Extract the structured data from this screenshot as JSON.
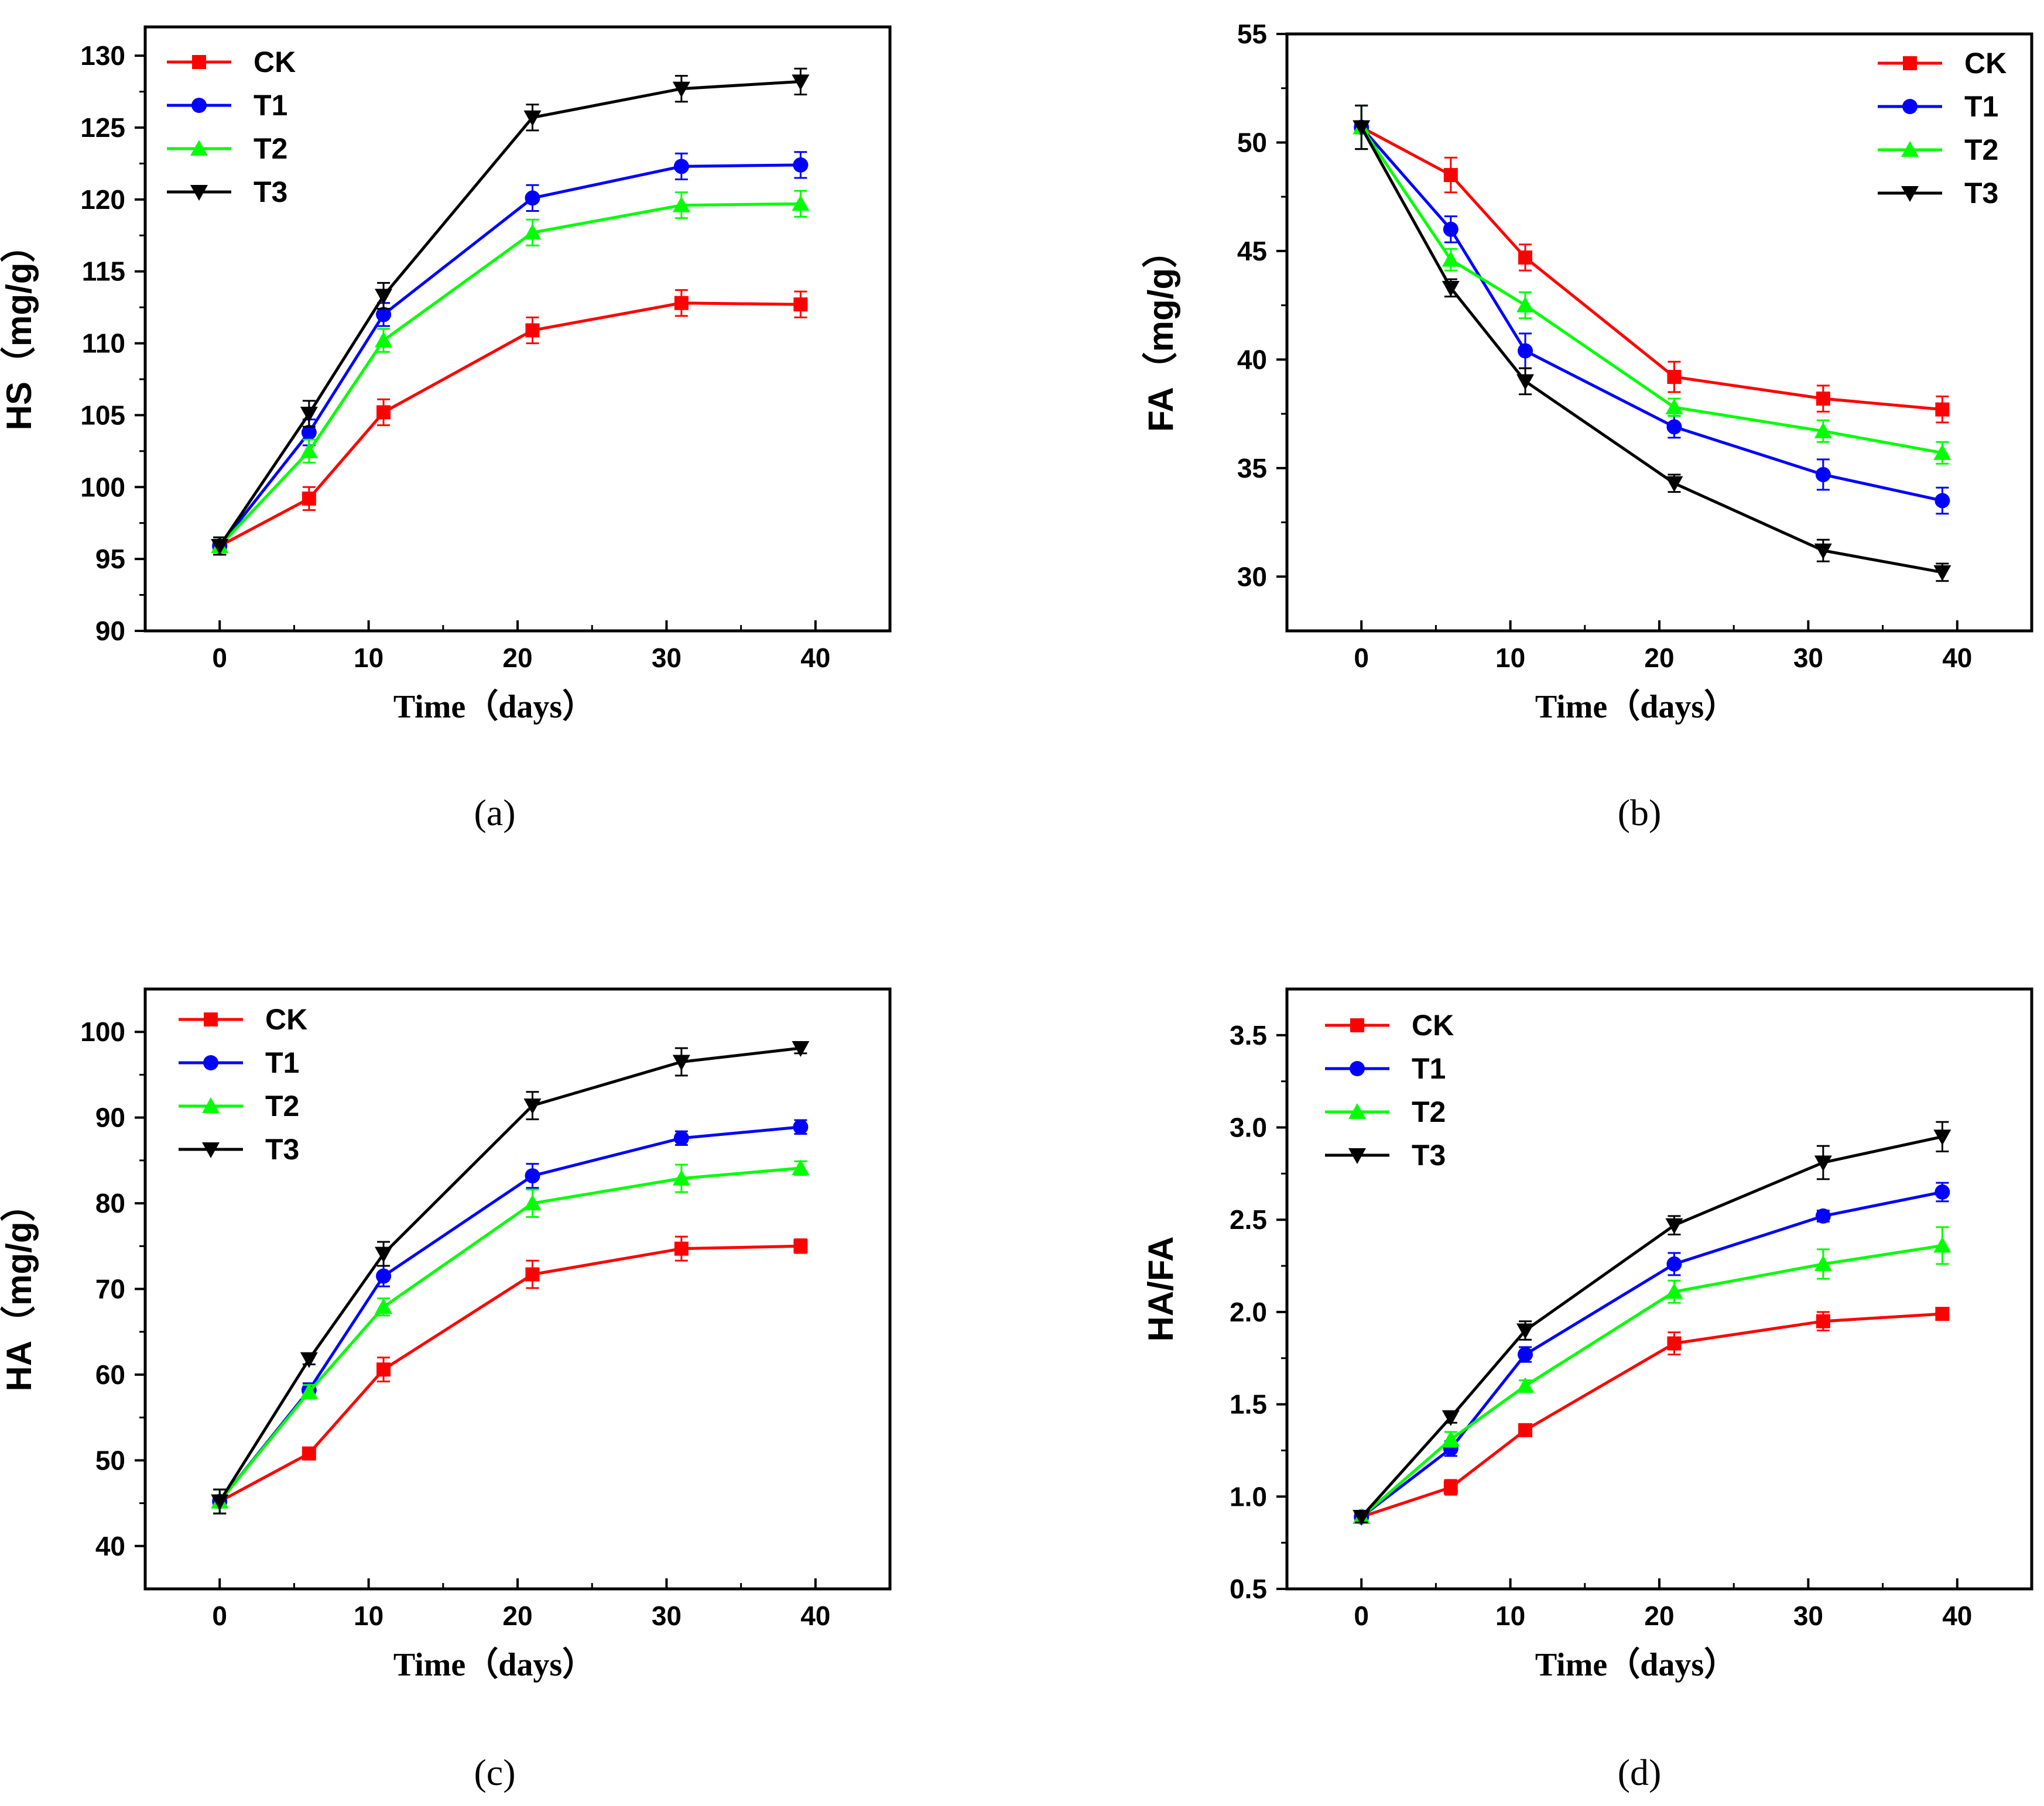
{
  "colors": {
    "CK": "#ff0000",
    "T1": "#0000ff",
    "T2": "#00ff00",
    "T3": "#000000"
  },
  "chart_data": [
    {
      "type": "line",
      "panel_label": "(a)",
      "xlabel": "Time（days）",
      "ylabel": "HS（mg/g）",
      "xlim": [
        -5,
        45
      ],
      "ylim": [
        90,
        132
      ],
      "xticks": [
        0,
        10,
        20,
        30,
        40
      ],
      "yticks": [
        90,
        95,
        100,
        105,
        110,
        115,
        120,
        125,
        130
      ],
      "legend_position": "top-left",
      "x": [
        0,
        6,
        11,
        21,
        31,
        39
      ],
      "series": [
        {
          "name": "CK",
          "marker": "square",
          "values": [
            95.9,
            99.2,
            105.2,
            110.9,
            112.8,
            112.7
          ],
          "errors": [
            0.6,
            0.8,
            0.9,
            0.9,
            0.9,
            0.9
          ]
        },
        {
          "name": "T1",
          "marker": "circle",
          "values": [
            95.9,
            103.8,
            112.0,
            120.1,
            122.3,
            122.4
          ],
          "errors": [
            0.6,
            0.9,
            0.8,
            0.9,
            0.9,
            0.9
          ]
        },
        {
          "name": "T2",
          "marker": "triangle-up",
          "values": [
            95.9,
            102.5,
            110.2,
            117.7,
            119.6,
            119.7
          ],
          "errors": [
            0.6,
            0.8,
            0.8,
            0.9,
            0.9,
            0.9
          ]
        },
        {
          "name": "T3",
          "marker": "triangle-down",
          "values": [
            95.9,
            105.1,
            113.3,
            125.7,
            127.7,
            128.2
          ],
          "errors": [
            0.6,
            0.9,
            0.9,
            0.9,
            0.9,
            0.9
          ]
        }
      ]
    },
    {
      "type": "line",
      "panel_label": "(b)",
      "xlabel": "Time（days）",
      "ylabel": "FA（mg/g）",
      "xlim": [
        -5,
        45
      ],
      "ylim": [
        27.5,
        55
      ],
      "xticks": [
        0,
        10,
        20,
        30,
        40
      ],
      "yticks": [
        30,
        35,
        40,
        45,
        50,
        55
      ],
      "legend_position": "top-right",
      "x": [
        0,
        6,
        11,
        21,
        31,
        39
      ],
      "series": [
        {
          "name": "CK",
          "marker": "square",
          "values": [
            50.7,
            48.5,
            44.7,
            39.2,
            38.2,
            37.7
          ],
          "errors": [
            1.0,
            0.8,
            0.6,
            0.7,
            0.6,
            0.6
          ]
        },
        {
          "name": "T1",
          "marker": "circle",
          "values": [
            50.7,
            46.0,
            40.4,
            36.9,
            34.7,
            33.5
          ],
          "errors": [
            1.0,
            0.6,
            0.8,
            0.5,
            0.7,
            0.6
          ]
        },
        {
          "name": "T2",
          "marker": "triangle-up",
          "values": [
            50.7,
            44.6,
            42.5,
            37.8,
            36.7,
            35.7
          ],
          "errors": [
            1.0,
            0.5,
            0.6,
            0.4,
            0.5,
            0.5
          ]
        },
        {
          "name": "T3",
          "marker": "triangle-down",
          "values": [
            50.7,
            43.3,
            39.0,
            34.3,
            31.2,
            30.2
          ],
          "errors": [
            1.0,
            0.4,
            0.6,
            0.4,
            0.5,
            0.4
          ]
        }
      ]
    },
    {
      "type": "line",
      "panel_label": "(c)",
      "xlabel": "Time（days）",
      "ylabel": "HA（mg/g）",
      "xlim": [
        -5,
        45
      ],
      "ylim": [
        35,
        105
      ],
      "xticks": [
        0,
        10,
        20,
        30,
        40
      ],
      "yticks": [
        40,
        50,
        60,
        70,
        80,
        90,
        100
      ],
      "legend_position": "top-left",
      "x": [
        0,
        6,
        11,
        21,
        31,
        39
      ],
      "series": [
        {
          "name": "CK",
          "marker": "square",
          "values": [
            45.2,
            50.8,
            60.6,
            71.7,
            74.7,
            75.0
          ],
          "errors": [
            1.4,
            0.6,
            1.4,
            1.6,
            1.4,
            0.8
          ]
        },
        {
          "name": "T1",
          "marker": "circle",
          "values": [
            45.2,
            58.2,
            71.5,
            83.2,
            87.6,
            88.9
          ],
          "errors": [
            1.4,
            0.8,
            1.2,
            1.4,
            0.8,
            0.8
          ]
        },
        {
          "name": "T2",
          "marker": "triangle-up",
          "values": [
            45.2,
            58.0,
            67.9,
            80.0,
            82.9,
            84.1
          ],
          "errors": [
            1.4,
            0.8,
            1.0,
            1.6,
            1.6,
            0.8
          ]
        },
        {
          "name": "T3",
          "marker": "triangle-down",
          "values": [
            45.2,
            61.8,
            74.1,
            91.4,
            96.5,
            98.1
          ],
          "errors": [
            1.4,
            0.6,
            1.4,
            1.6,
            1.6,
            0.6
          ]
        }
      ]
    },
    {
      "type": "line",
      "panel_label": "(d)",
      "xlabel": "Time（days）",
      "ylabel": "HA/FA",
      "xlim": [
        -5,
        45
      ],
      "ylim": [
        0.5,
        3.75
      ],
      "xticks": [
        0,
        10,
        20,
        30,
        40
      ],
      "yticks": [
        0.5,
        1.0,
        1.5,
        2.0,
        2.5,
        3.0,
        3.5
      ],
      "legend_position": "top-left",
      "x": [
        0,
        6,
        11,
        21,
        31,
        39
      ],
      "series": [
        {
          "name": "CK",
          "marker": "square",
          "values": [
            0.89,
            1.05,
            1.36,
            1.83,
            1.95,
            1.99
          ],
          "errors": [
            0.03,
            0.04,
            0.03,
            0.06,
            0.05,
            0.03
          ]
        },
        {
          "name": "T1",
          "marker": "circle",
          "values": [
            0.89,
            1.26,
            1.77,
            2.26,
            2.52,
            2.65
          ],
          "errors": [
            0.03,
            0.04,
            0.04,
            0.06,
            0.03,
            0.05
          ]
        },
        {
          "name": "T2",
          "marker": "triangle-up",
          "values": [
            0.89,
            1.31,
            1.6,
            2.11,
            2.26,
            2.36
          ],
          "errors": [
            0.03,
            0.04,
            0.03,
            0.06,
            0.08,
            0.1
          ]
        },
        {
          "name": "T3",
          "marker": "triangle-down",
          "values": [
            0.89,
            1.43,
            1.9,
            2.47,
            2.81,
            2.95
          ],
          "errors": [
            0.03,
            0.03,
            0.05,
            0.05,
            0.09,
            0.08
          ]
        }
      ]
    }
  ]
}
